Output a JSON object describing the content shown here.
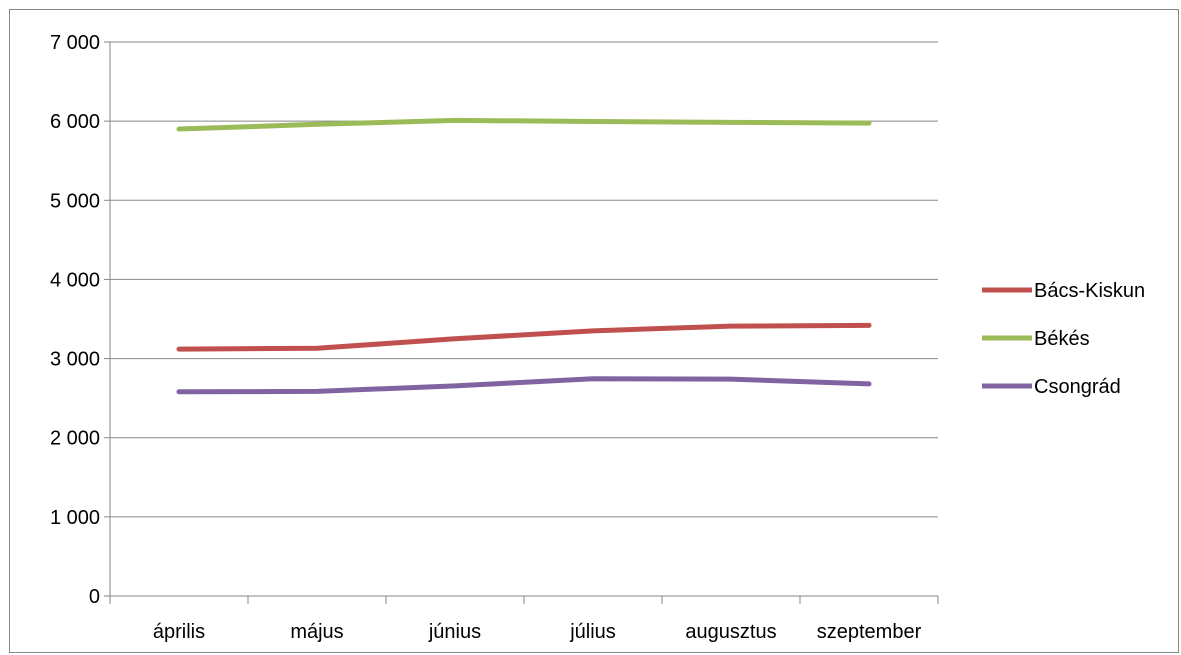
{
  "chart_data": {
    "type": "line",
    "title": "",
    "xlabel": "",
    "ylabel": "",
    "categories": [
      "április",
      "május",
      "június",
      "július",
      "augusztus",
      "szeptember"
    ],
    "ylim": [
      0,
      7000
    ],
    "y_ticks": [
      0,
      1000,
      2000,
      3000,
      4000,
      5000,
      6000,
      7000
    ],
    "y_tick_labels": [
      "0",
      "1 000",
      "2 000",
      "3 000",
      "4 000",
      "5 000",
      "6 000",
      "7 000"
    ],
    "grid": true,
    "legend_position": "right",
    "series": [
      {
        "name": "Bács-Kiskun",
        "color": "#c0504d",
        "values": [
          3120,
          3130,
          3250,
          3350,
          3410,
          3420
        ]
      },
      {
        "name": "Békés",
        "color": "#9bbb59",
        "values": [
          5900,
          5960,
          6010,
          5995,
          5985,
          5975
        ]
      },
      {
        "name": "Csongrád",
        "color": "#8064a2",
        "values": [
          2580,
          2585,
          2655,
          2745,
          2740,
          2680
        ]
      }
    ]
  }
}
